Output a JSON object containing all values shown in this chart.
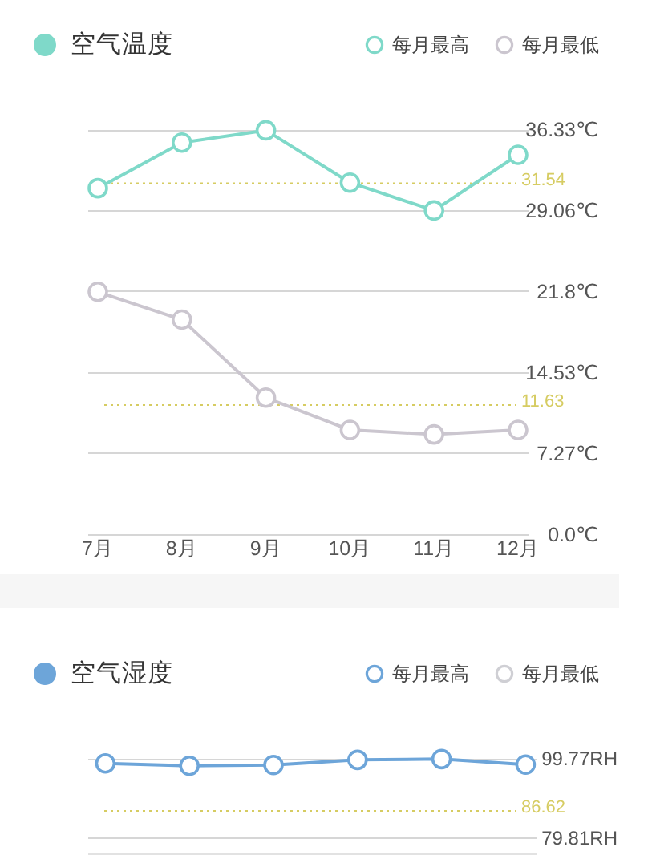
{
  "chart_data": [
    {
      "type": "line",
      "title": "空气温度",
      "categories": [
        "7月",
        "8月",
        "9月",
        "10月",
        "11月",
        "12月"
      ],
      "series": [
        {
          "name": "每月最高",
          "color": "#7fd9c9",
          "values": [
            31.1,
            35.2,
            36.3,
            31.6,
            29.1,
            34.1
          ]
        },
        {
          "name": "每月最低",
          "color": "#cbc6cf",
          "values": [
            21.8,
            19.3,
            12.3,
            9.4,
            9.0,
            9.4
          ]
        }
      ],
      "ylim": [
        0,
        36.33
      ],
      "yticks": [
        {
          "value": 0,
          "label": "0.0℃"
        },
        {
          "value": 7.27,
          "label": "7.27℃"
        },
        {
          "value": 14.53,
          "label": "14.53℃"
        },
        {
          "value": 21.8,
          "label": "21.8℃"
        },
        {
          "value": 29.06,
          "label": "29.06℃"
        },
        {
          "value": 36.33,
          "label": "36.33℃"
        }
      ],
      "ref_lines": [
        {
          "axis": "y",
          "value": 31.54,
          "label": "31.54",
          "color": "#d6cc62",
          "line_style": "dotted"
        },
        {
          "axis": "y",
          "value": 11.63,
          "label": "11.63",
          "color": "#d6cc62",
          "line_style": "dotted"
        }
      ],
      "grid": "y",
      "legend": "top right",
      "marker": "circle",
      "line_style": "solid"
    },
    {
      "type": "line",
      "title": "空气湿度",
      "categories": [
        null,
        null,
        null,
        null,
        null,
        null
      ],
      "series": [
        {
          "name": "每月最高",
          "color": "#6da5d9",
          "values": [
            98.6,
            98.0,
            98.2,
            99.5,
            99.7,
            98.3
          ]
        },
        {
          "name": "每月最低",
          "color": "#cfcfd4",
          "values": [
            null,
            null,
            null,
            null,
            null,
            null
          ]
        }
      ],
      "ylim": [
        75.7,
        99.77
      ],
      "yticks": [
        {
          "value": 79.81,
          "label": "79.81RH"
        },
        {
          "value": 99.77,
          "label": "99.77RH"
        }
      ],
      "ref_lines": [
        {
          "axis": "y",
          "value": 86.62,
          "label": "86.62",
          "color": "#d6cc62",
          "line_style": "dotted"
        }
      ],
      "grid": "y",
      "legend": "top right",
      "marker": "circle",
      "line_style": "solid"
    }
  ]
}
